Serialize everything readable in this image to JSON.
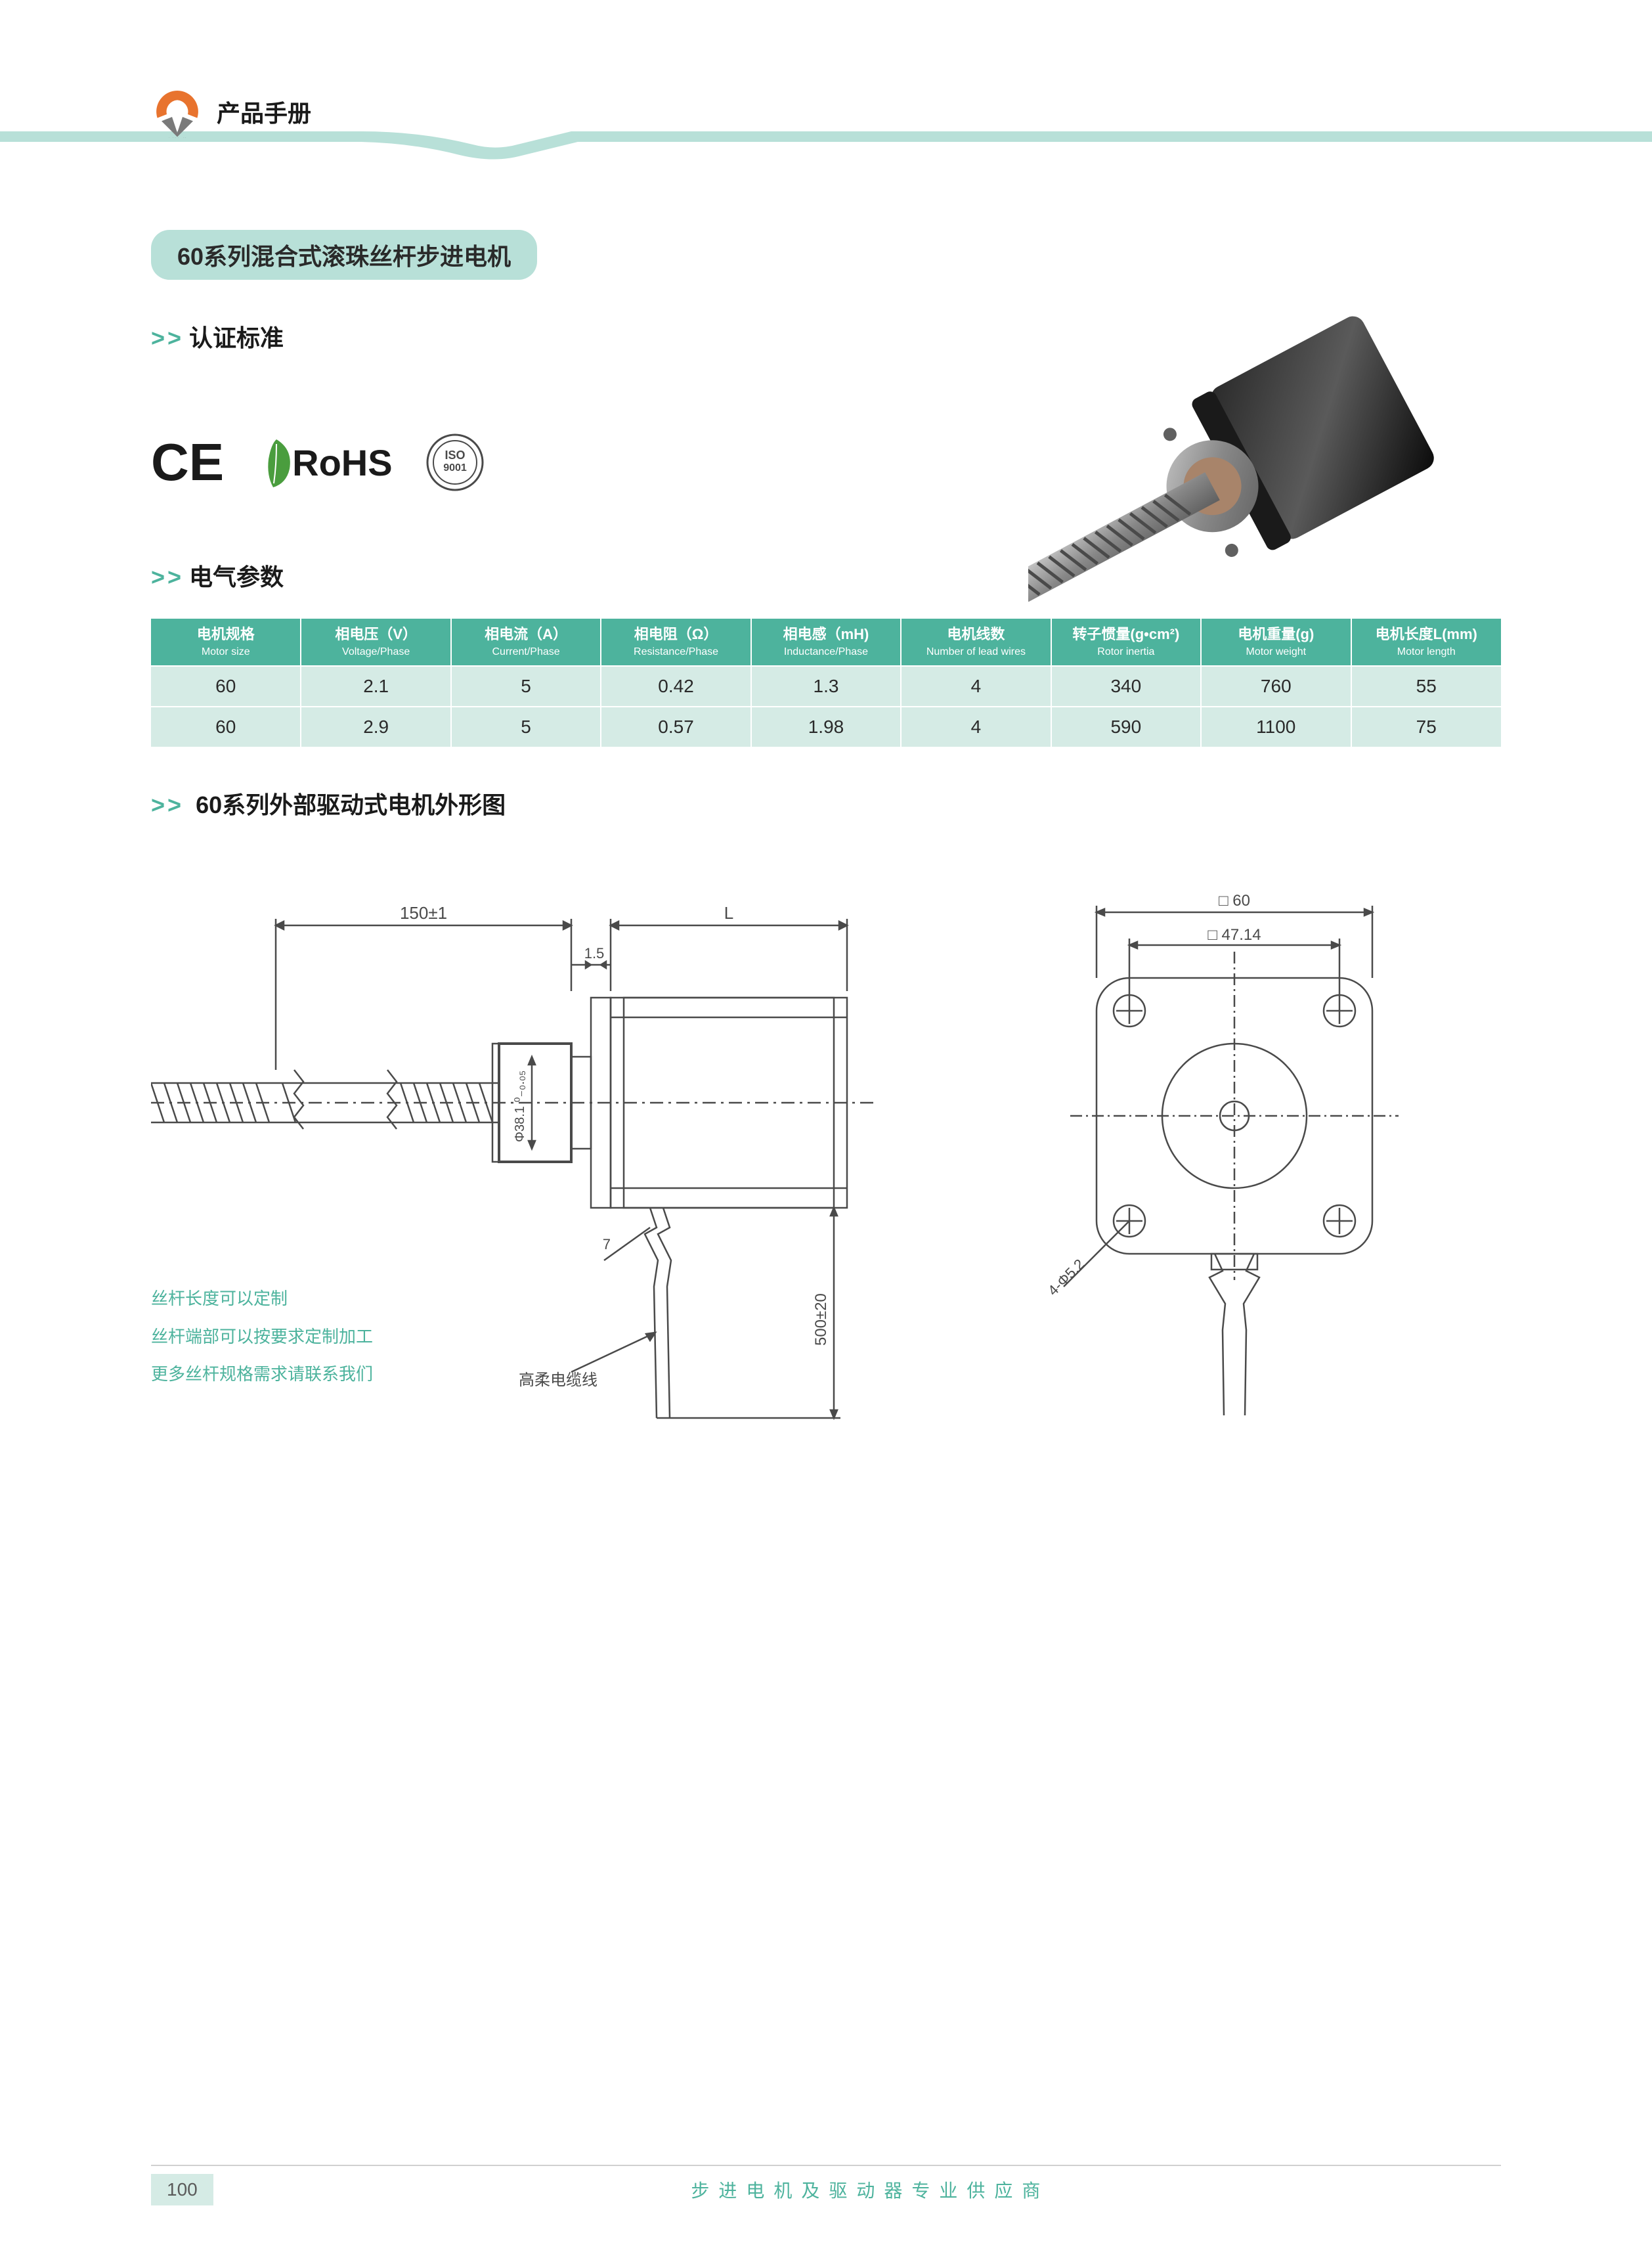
{
  "header": {
    "title": "产品手册",
    "logo_color_primary": "#e8732e",
    "logo_color_accent": "#7a7a7a",
    "swoosh_color": "#b8e0d8"
  },
  "section_title": "60系列混合式滚珠丝杆步进电机",
  "cert_heading": "认证标准",
  "chevron": ">>",
  "certs": {
    "ce": "CE",
    "rohs": "RoHS",
    "iso": "ISO 9001"
  },
  "elec_heading": "电气参数",
  "table": {
    "header_bg": "#4db39d",
    "row_bg": "#d5ebe5",
    "columns": [
      {
        "cn": "电机规格",
        "en": "Motor size"
      },
      {
        "cn": "相电压（V）",
        "en": "Voltage/Phase"
      },
      {
        "cn": "相电流（A）",
        "en": "Current/Phase"
      },
      {
        "cn": "相电阻（Ω）",
        "en": "Resistance/Phase"
      },
      {
        "cn": "相电感（mH)",
        "en": "Inductance/Phase"
      },
      {
        "cn": "电机线数",
        "en": "Number of lead wires"
      },
      {
        "cn": "转子惯量(g•cm²)",
        "en": "Rotor inertia"
      },
      {
        "cn": "电机重量(g)",
        "en": "Motor weight"
      },
      {
        "cn": "电机长度L(mm)",
        "en": "Motor length"
      }
    ],
    "rows": [
      [
        "60",
        "2.1",
        "5",
        "0.42",
        "1.3",
        "4",
        "340",
        "760",
        "55"
      ],
      [
        "60",
        "2.9",
        "5",
        "0.57",
        "1.98",
        "4",
        "590",
        "1100",
        "75"
      ]
    ]
  },
  "diagram_heading": "60系列外部驱动式电机外形图",
  "diagram": {
    "dims": {
      "shaft_len": "150±1",
      "body_len": "L",
      "flange": "1.5",
      "flange2": "7",
      "pilot_dia": "Φ38.1- 0\n        -0.05",
      "cable_len": "500±20",
      "cable_label": "高柔电缆线",
      "face_outer": "□ 60",
      "face_bolt": "□ 47.14",
      "hole": "4-Φ5.2"
    },
    "notes": [
      "丝杆长度可以定制",
      "丝杆端部可以按要求定制加工",
      "更多丝杆规格需求请联系我们"
    ],
    "stroke": "#4a4a4a",
    "accent": "#4db39d"
  },
  "footer": {
    "page": "100",
    "text": "步进电机及驱动器专业供应商"
  }
}
